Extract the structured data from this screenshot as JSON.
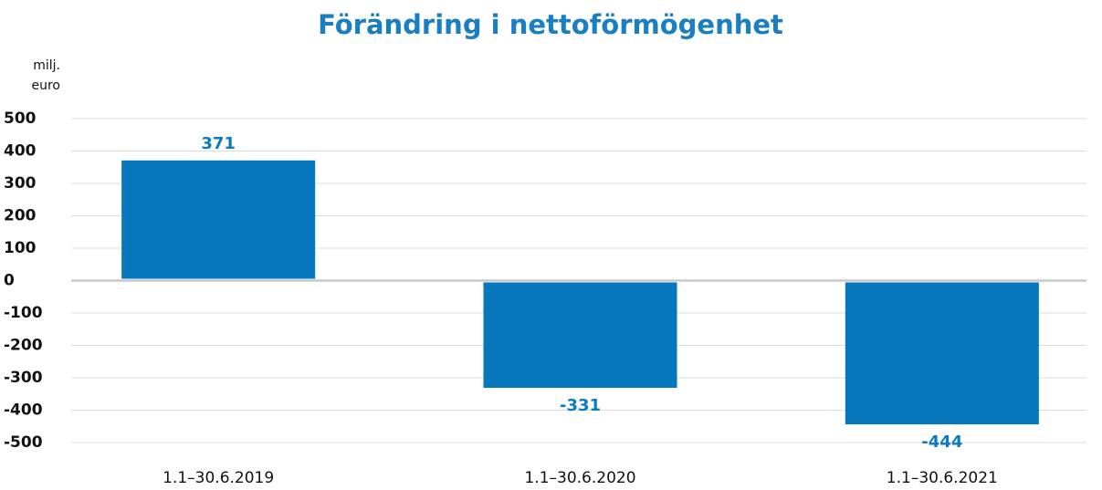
{
  "chart_data": {
    "type": "bar",
    "title": "Förändring i nettoförmögenhet",
    "ylabel": [
      "milj.",
      "euro"
    ],
    "categories": [
      "1.1–30.6.2019",
      "1.1–30.6.2020",
      "1.1–30.6.2021"
    ],
    "values": [
      371,
      -331,
      -444
    ],
    "color": "#0677bd",
    "ylim": [
      -500,
      500
    ],
    "yticks": [
      500,
      400,
      300,
      200,
      100,
      0,
      -100,
      -200,
      -300,
      -400,
      -500
    ],
    "grid": true
  }
}
